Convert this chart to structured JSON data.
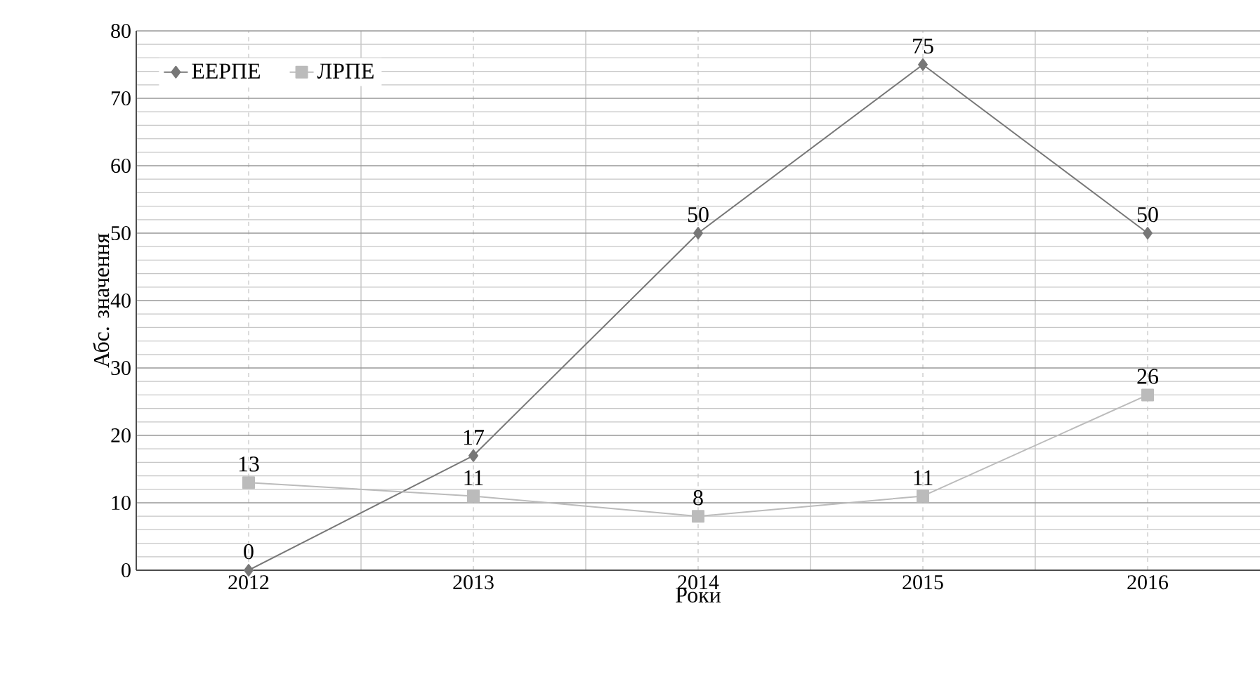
{
  "chart_data": {
    "type": "line",
    "xlabel": "Роки",
    "ylabel": "Абс. значення",
    "categories": [
      "2012",
      "2013",
      "2014",
      "2015",
      "2016"
    ],
    "series": [
      {
        "name": "ЕЕРПЕ",
        "color": "#777777",
        "marker": "diamond",
        "values": [
          0,
          17,
          50,
          75,
          50
        ]
      },
      {
        "name": "ЛРПЕ",
        "color": "#bbbbbb",
        "marker": "square",
        "values": [
          13,
          11,
          8,
          11,
          26
        ]
      }
    ],
    "ylim": [
      0,
      80
    ],
    "yticks": [
      0,
      10,
      20,
      30,
      40,
      50,
      60,
      70,
      80
    ],
    "grid": true,
    "legend": "top left",
    "data_labels": true,
    "line_style": "solid"
  }
}
